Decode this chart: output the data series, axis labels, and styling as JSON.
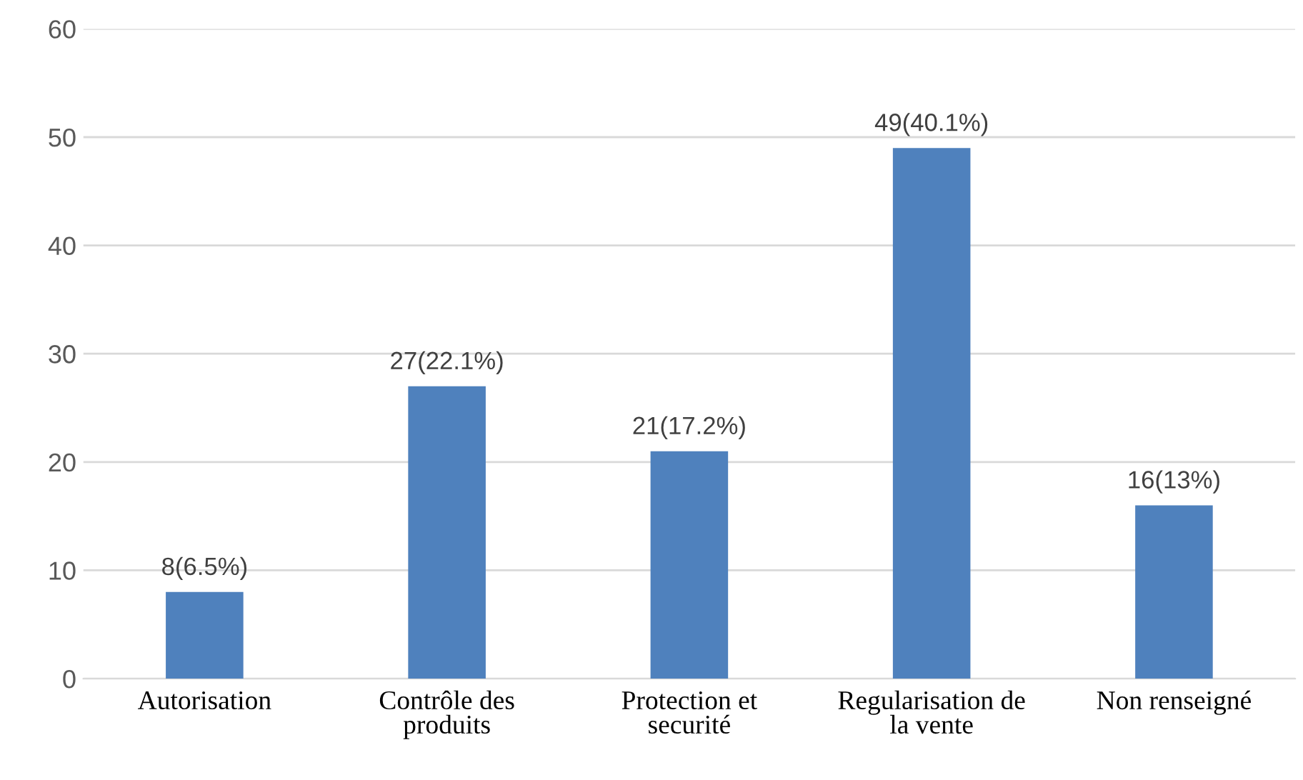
{
  "chart_data": {
    "type": "bar",
    "categories": [
      "Autorisation",
      "Contrôle des produits",
      "Protection et securité",
      "Regularisation de la vente",
      "Non renseigné"
    ],
    "values": [
      8,
      27,
      21,
      49,
      16
    ],
    "color": "#4f81bd",
    "value_labels": [
      "8(6.5%)",
      "27(22.1%)",
      "21(17.2%)",
      "49(40.1%)",
      "16(13%)"
    ],
    "ylim": [
      0,
      60
    ],
    "yticks": [
      0,
      10,
      20,
      30,
      40,
      50,
      60
    ],
    "grid": "y",
    "legend": false
  }
}
